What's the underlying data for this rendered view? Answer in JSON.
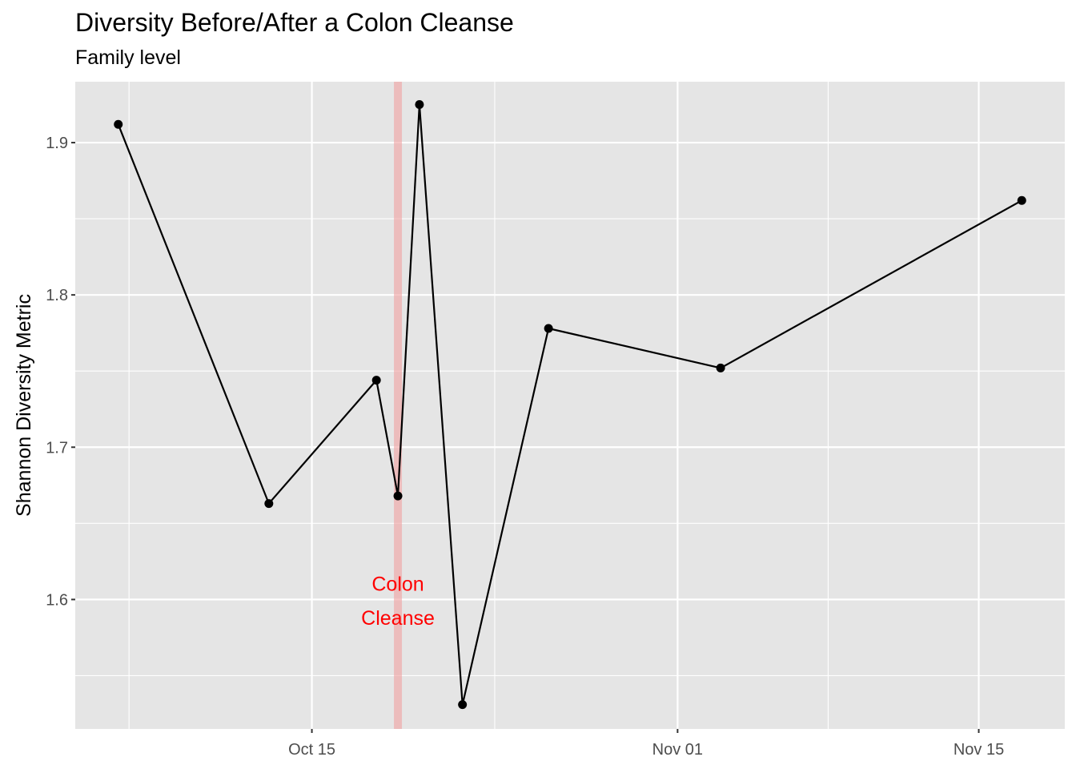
{
  "chart_data": {
    "type": "line",
    "title": "Diversity Before/After a Colon Cleanse",
    "subtitle": "Family level",
    "xlabel": "",
    "ylabel": "Shannon Diversity Metric",
    "x_ticks": [
      "Oct 15",
      "Nov 01",
      "Nov 15"
    ],
    "y_ticks": [
      "1.6",
      "1.7",
      "1.8",
      "1.9"
    ],
    "xlim": [
      "2020-10-04",
      "2020-11-19"
    ],
    "ylim": [
      1.515,
      1.94
    ],
    "grid": true,
    "points": [
      {
        "date": "2020-10-06",
        "value": 1.912
      },
      {
        "date": "2020-10-13",
        "value": 1.663
      },
      {
        "date": "2020-10-18",
        "value": 1.744
      },
      {
        "date": "2020-10-19",
        "value": 1.668
      },
      {
        "date": "2020-10-20",
        "value": 1.925
      },
      {
        "date": "2020-10-22",
        "value": 1.531
      },
      {
        "date": "2020-10-26",
        "value": 1.778
      },
      {
        "date": "2020-11-03",
        "value": 1.752
      },
      {
        "date": "2020-11-17",
        "value": 1.862
      }
    ],
    "line_color": "#000000",
    "panel_background": "#e5e5e5",
    "annotation": {
      "date": "2020-10-19",
      "text_line1": "Colon",
      "text_line2": "Cleanse",
      "color": "#ff0000",
      "band_color": "#f0a0a0"
    }
  }
}
